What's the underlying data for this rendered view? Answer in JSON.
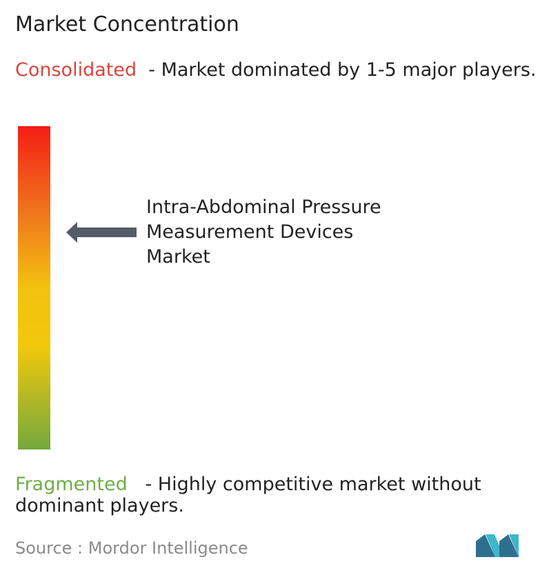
{
  "title": "Market Concentration",
  "top": {
    "label": "Consolidated",
    "description": "- Market dominated by 1-5 major players."
  },
  "market": {
    "lines": [
      "Intra-Abdominal Pressure",
      "Measurement Devices",
      "Market"
    ]
  },
  "bottom": {
    "label": "Fragmented",
    "description": "- Highly competitive market without dominant players."
  },
  "source": "Source :  Mordor Intelligence"
}
